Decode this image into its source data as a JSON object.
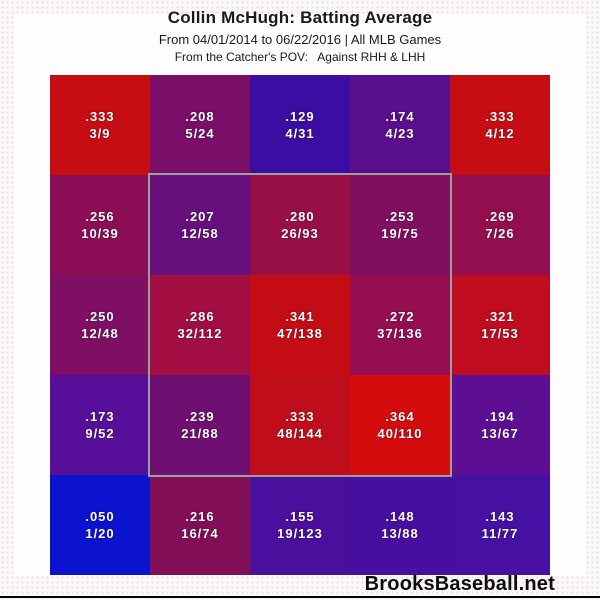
{
  "header": {
    "title": "Collin McHugh: Batting Average",
    "subtitle": "From 04/01/2014 to 06/22/2016 | All MLB Games",
    "pov_line": "From the Catcher's POV:   Against RHH & LHH"
  },
  "footer": {
    "brand": "BrooksBaseball.net"
  },
  "chart_data": {
    "type": "heatmap",
    "title": "Collin McHugh: Batting Average",
    "subtitle": "From 04/01/2014 to 06/22/2016 | All MLB Games",
    "note": "From the Catcher's POV: Against RHH & LHH",
    "rows": 5,
    "cols": 5,
    "perspective": "catcher",
    "strike_zone": {
      "row_start": 1,
      "col_start": 1,
      "row_end": 3,
      "col_end": 3,
      "border_color": "#9aa09a"
    },
    "color_scale": {
      "low": "#0c13cf",
      "high": "#d40c0e",
      "meaning": "blue = low batting average, red = high batting average"
    },
    "cells": [
      [
        {
          "avg": ".333",
          "ratio": "3/9",
          "hits": 3,
          "at_bats": 9,
          "value": 0.333,
          "color": "#c60d13"
        },
        {
          "avg": ".208",
          "ratio": "5/24",
          "hits": 5,
          "at_bats": 24,
          "value": 0.208,
          "color": "#7a0e68"
        },
        {
          "avg": ".129",
          "ratio": "4/31",
          "hits": 4,
          "at_bats": 31,
          "value": 0.129,
          "color": "#3b0da2"
        },
        {
          "avg": ".174",
          "ratio": "4/23",
          "hits": 4,
          "at_bats": 23,
          "value": 0.174,
          "color": "#5a0f8e"
        },
        {
          "avg": ".333",
          "ratio": "4/12",
          "hits": 4,
          "at_bats": 12,
          "value": 0.333,
          "color": "#c60d13"
        }
      ],
      [
        {
          "avg": ".256",
          "ratio": "10/39",
          "hits": 10,
          "at_bats": 39,
          "value": 0.256,
          "color": "#8c0e56"
        },
        {
          "avg": ".207",
          "ratio": "12/58",
          "hits": 12,
          "at_bats": 58,
          "value": 0.207,
          "color": "#670f7d"
        },
        {
          "avg": ".280",
          "ratio": "26/93",
          "hits": 26,
          "at_bats": 93,
          "value": 0.28,
          "color": "#980f48"
        },
        {
          "avg": ".253",
          "ratio": "19/75",
          "hits": 19,
          "at_bats": 75,
          "value": 0.253,
          "color": "#820e60"
        },
        {
          "avg": ".269",
          "ratio": "7/26",
          "hits": 7,
          "at_bats": 26,
          "value": 0.269,
          "color": "#930e4e"
        }
      ],
      [
        {
          "avg": ".250",
          "ratio": "12/48",
          "hits": 12,
          "at_bats": 48,
          "value": 0.25,
          "color": "#7e0f63"
        },
        {
          "avg": ".286",
          "ratio": "32/112",
          "hits": 32,
          "at_bats": 112,
          "value": 0.286,
          "color": "#a30e42"
        },
        {
          "avg": ".341",
          "ratio": "47/138",
          "hits": 47,
          "at_bats": 138,
          "value": 0.341,
          "color": "#c40c15"
        },
        {
          "avg": ".272",
          "ratio": "37/136",
          "hits": 37,
          "at_bats": 136,
          "value": 0.272,
          "color": "#940e50"
        },
        {
          "avg": ".321",
          "ratio": "17/53",
          "hits": 17,
          "at_bats": 53,
          "value": 0.321,
          "color": "#bf0d1f"
        }
      ],
      [
        {
          "avg": ".173",
          "ratio": "9/52",
          "hits": 9,
          "at_bats": 52,
          "value": 0.173,
          "color": "#570f9a"
        },
        {
          "avg": ".239",
          "ratio": "21/88",
          "hits": 21,
          "at_bats": 88,
          "value": 0.239,
          "color": "#6f0f71"
        },
        {
          "avg": ".333",
          "ratio": "48/144",
          "hits": 48,
          "at_bats": 144,
          "value": 0.333,
          "color": "#c00d1c"
        },
        {
          "avg": ".364",
          "ratio": "40/110",
          "hits": 40,
          "at_bats": 110,
          "value": 0.364,
          "color": "#d40c0e"
        },
        {
          "avg": ".194",
          "ratio": "13/67",
          "hits": 13,
          "at_bats": 67,
          "value": 0.194,
          "color": "#5d0f93"
        }
      ],
      [
        {
          "avg": ".050",
          "ratio": "1/20",
          "hits": 1,
          "at_bats": 20,
          "value": 0.05,
          "color": "#0c13cf"
        },
        {
          "avg": ".216",
          "ratio": "16/74",
          "hits": 16,
          "at_bats": 74,
          "value": 0.216,
          "color": "#830e58"
        },
        {
          "avg": ".155",
          "ratio": "19/123",
          "hits": 19,
          "at_bats": 123,
          "value": 0.155,
          "color": "#4a0f9c"
        },
        {
          "avg": ".148",
          "ratio": "13/88",
          "hits": 13,
          "at_bats": 88,
          "value": 0.148,
          "color": "#470fa0"
        },
        {
          "avg": ".143",
          "ratio": "11/77",
          "hits": 11,
          "at_bats": 77,
          "value": 0.143,
          "color": "#4610a2"
        }
      ]
    ]
  }
}
